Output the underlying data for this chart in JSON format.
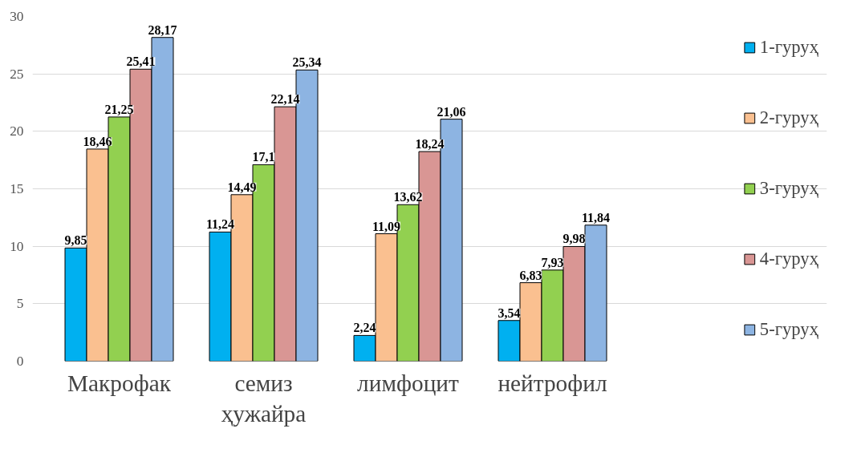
{
  "chart_data": {
    "type": "bar",
    "categories": [
      "Макрофак",
      "семиз\nҳужайра",
      "лимфоцит",
      "нейтрофил"
    ],
    "series": [
      {
        "name": "1-гуруҳ",
        "color": "#00b0f0",
        "values": [
          9.85,
          11.24,
          2.24,
          3.54
        ],
        "value_labels": [
          "9,85",
          "11,24",
          "2,24",
          "3,54"
        ]
      },
      {
        "name": "2-гуруҳ",
        "color": "#fac090",
        "values": [
          18.46,
          14.49,
          11.09,
          6.83
        ],
        "value_labels": [
          "18,46",
          "14,49",
          "11,09",
          "6,83"
        ]
      },
      {
        "name": "3-гуруҳ",
        "color": "#92d050",
        "values": [
          21.25,
          17.1,
          13.62,
          7.93
        ],
        "value_labels": [
          "21,25",
          "17,1",
          "13,62",
          "7,93"
        ]
      },
      {
        "name": "4-гуруҳ",
        "color": "#d99694",
        "values": [
          25.41,
          22.14,
          18.24,
          9.98
        ],
        "value_labels": [
          "25,41",
          "22,14",
          "18,24",
          "9,98"
        ]
      },
      {
        "name": "5-гуруҳ",
        "color": "#8db4e2",
        "values": [
          28.17,
          25.34,
          21.06,
          11.84
        ],
        "value_labels": [
          "28,17",
          "25,34",
          "21,06",
          "11,84"
        ]
      }
    ],
    "ylim": [
      0,
      30
    ],
    "yticks": [
      0,
      5,
      10,
      15,
      20,
      25,
      30
    ],
    "grid": "y",
    "legend": "right"
  }
}
